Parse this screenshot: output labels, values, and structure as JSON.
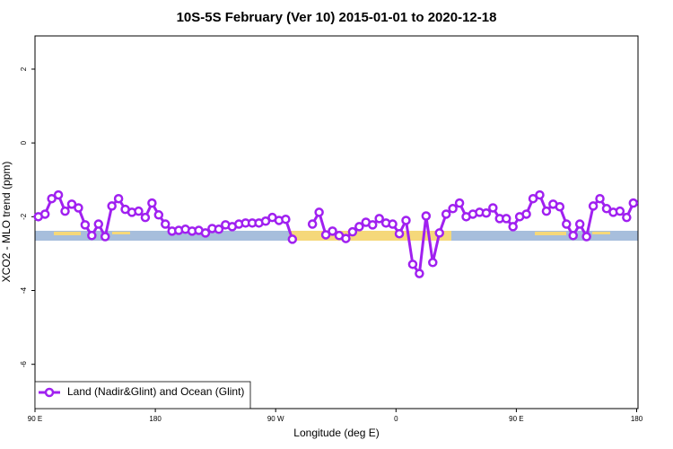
{
  "chart_data": {
    "type": "line",
    "title": "10S-5S February (Ver 10)   2015-01-01 to 2020-12-18",
    "xlabel": "Longitude (deg E)",
    "ylabel": "XCO2 - MLO trend (ppm)",
    "xlim": [
      90,
      541
    ],
    "ylim": [
      -7.2,
      2.9
    ],
    "xticks": [
      {
        "value": 90,
        "label": "90 E"
      },
      180,
      {
        "value": 270,
        "label": "90 W"
      },
      {
        "value": 360,
        "label": "0"
      },
      {
        "value": 450,
        "label": "90 E"
      },
      {
        "value": 540,
        "label": "180"
      }
    ],
    "yticks": [
      -6,
      -4,
      -2,
      0,
      2
    ],
    "legend": "bottomleft",
    "x": [
      92.5,
      97.5,
      102.5,
      107.5,
      112.5,
      117.5,
      122.5,
      127.5,
      132.5,
      137.5,
      142.5,
      147.5,
      152.5,
      157.5,
      162.5,
      167.5,
      172.5,
      177.5,
      182.5,
      187.5,
      192.5,
      197.5,
      202.5,
      207.5,
      212.5,
      217.5,
      222.5,
      227.5,
      232.5,
      237.5,
      242.5,
      247.5,
      252.5,
      257.5,
      262.5,
      267.5,
      272.5,
      277.5,
      282.5,
      287.5,
      292.5,
      297.5,
      302.5,
      307.5,
      312.5,
      317.5,
      322.5,
      327.5,
      332.5,
      337.5,
      342.5,
      347.5,
      352.5,
      357.5,
      362.5,
      367.5,
      372.5,
      377.5,
      382.5,
      387.5,
      392.5,
      397.5,
      402.5,
      407.5,
      412.5,
      417.5,
      422.5,
      427.5,
      432.5,
      437.5,
      442.5,
      447.5,
      452.5,
      457.5,
      462.5,
      467.5,
      472.5,
      477.5,
      482.5,
      487.5,
      492.5,
      497.5,
      502.5,
      507.5,
      512.5,
      517.5,
      522.5,
      527.5,
      532.5,
      537.5
    ],
    "series": [
      {
        "name": "Land (Nadir&Glint) and Ocean (Glint)",
        "color": "#a020f0",
        "values": [
          -2.0,
          -1.93,
          -1.51,
          -1.41,
          -1.85,
          -1.66,
          -1.76,
          -2.22,
          -2.51,
          -2.2,
          -2.54,
          -1.71,
          -1.51,
          -1.8,
          -1.88,
          -1.85,
          -2.02,
          -1.63,
          -1.95,
          -2.2,
          -2.39,
          -2.37,
          -2.34,
          -2.39,
          -2.37,
          -2.44,
          -2.32,
          -2.34,
          -2.22,
          -2.27,
          -2.2,
          -2.17,
          -2.17,
          -2.17,
          -2.12,
          -2.02,
          -2.1,
          -2.07,
          -2.61,
          null,
          null,
          -2.2,
          -1.88,
          -2.49,
          -2.39,
          -2.51,
          -2.59,
          -2.41,
          -2.27,
          -2.15,
          -2.22,
          -2.05,
          -2.17,
          -2.2,
          -2.46,
          -2.1,
          -3.29,
          -3.54,
          -1.98,
          -3.24,
          -2.44,
          -1.93,
          -1.78,
          -1.63,
          -2.0,
          -1.93,
          -1.88,
          -1.9,
          -1.76,
          -2.05,
          -2.05,
          -2.27,
          -2.0,
          -1.93,
          -1.51,
          -1.41,
          -1.85,
          -1.66,
          -1.73,
          -2.2,
          -2.51,
          -2.2,
          -2.54,
          -1.71,
          -1.51,
          -1.78,
          -1.88,
          -1.85,
          -2.02,
          -1.63
        ]
      }
    ]
  }
}
